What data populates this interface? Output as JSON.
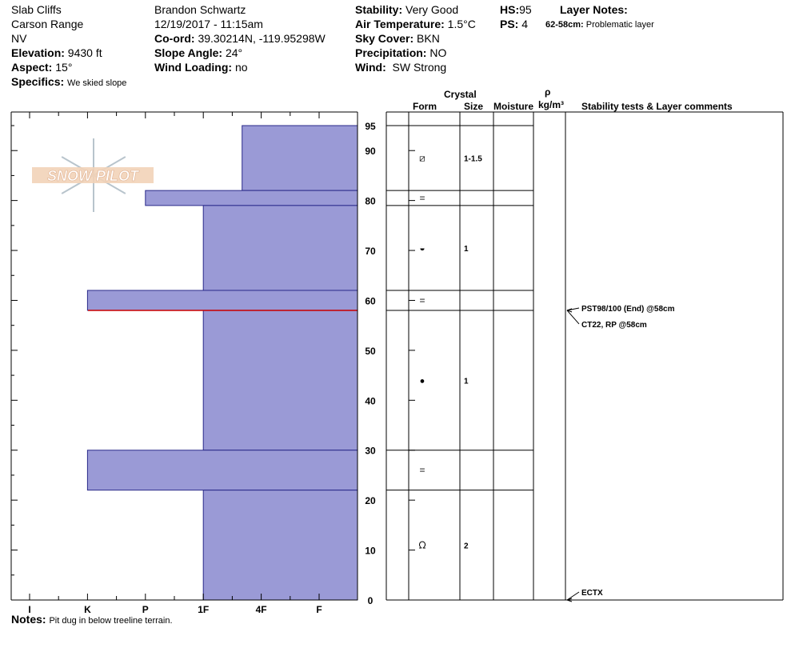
{
  "header": {
    "location": "Slab Cliffs",
    "range": "Carson Range",
    "state": "NV",
    "elevation_label": "Elevation:",
    "elevation": "9430 ft",
    "aspect_label": "Aspect:",
    "aspect": "15°",
    "specifics_label": "Specifics:",
    "specifics": "We skied slope",
    "observer": "Brandon Schwartz",
    "datetime": "12/19/2017 - 11:15am",
    "coord_label": "Co-ord:",
    "coord": "39.30214N, -119.95298W",
    "slope_label": "Slope Angle:",
    "slope": "24°",
    "windload_label": "Wind Loading:",
    "windload": "no",
    "stability_label": "Stability:",
    "stability": "Very Good",
    "airtemp_label": "Air Temperature:",
    "airtemp": "1.5°C",
    "sky_label": "Sky Cover:",
    "sky": "BKN",
    "precip_label": "Precipitation:",
    "precip": "NO",
    "wind_label": "Wind:",
    "wind": "SW Strong",
    "hs_label": "HS:",
    "hs": "95",
    "ps_label": "PS:",
    "ps": "4",
    "layer_notes_label": "Layer Notes:",
    "layer_note_range": "62-58cm:",
    "layer_note": "Problematic layer"
  },
  "columns": {
    "crystal": "Crystal",
    "form": "Form",
    "size": "Size",
    "moisture": "Moisture",
    "rho": "ρ",
    "density": "kg/m³",
    "comments": "Stability tests & Layer comments"
  },
  "notes_label": "Notes:",
  "notes": "Pit dug in below treeline terrain.",
  "logo_text": "SNOW PILOT",
  "colors": {
    "layer_fill": "#9a9ad6",
    "layer_stroke": "#2a2a8a",
    "problem_line": "#cc0000"
  },
  "chart_data": {
    "type": "bar",
    "depth_ticks": [
      0,
      10,
      20,
      30,
      40,
      50,
      60,
      70,
      80,
      90,
      95
    ],
    "hardness_ticks": [
      "I",
      "K",
      "P",
      "1F",
      "4F",
      "F"
    ],
    "ylim": [
      0,
      95
    ],
    "layers": [
      {
        "top": 95,
        "bottom": 82,
        "hardness": "4F+",
        "form": "faceted-rounded",
        "size": "1-1.5"
      },
      {
        "top": 82,
        "bottom": 79,
        "hardness": "P",
        "form": "crust",
        "size": ""
      },
      {
        "top": 79,
        "bottom": 62,
        "hardness": "1F",
        "form": "rounded-faceted",
        "size": "1"
      },
      {
        "top": 62,
        "bottom": 58,
        "hardness": "K",
        "form": "crust",
        "size": ""
      },
      {
        "top": 58,
        "bottom": 30,
        "hardness": "1F",
        "form": "rounded",
        "size": "1"
      },
      {
        "top": 30,
        "bottom": 22,
        "hardness": "K",
        "form": "crust",
        "size": ""
      },
      {
        "top": 22,
        "bottom": 0,
        "hardness": "1F",
        "form": "depth-hoar",
        "size": "2"
      }
    ],
    "problem_depth": 58,
    "tests": [
      {
        "depth": 58,
        "text": "PST98/100 (End) @58cm"
      },
      {
        "depth": 58,
        "text": "CT22, RP @58cm"
      },
      {
        "depth": 0,
        "text": "ECTX"
      }
    ]
  }
}
